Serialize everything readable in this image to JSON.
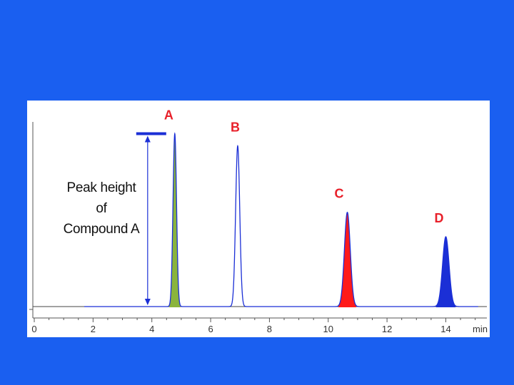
{
  "colors": {
    "background": "#1a5ff0",
    "panel": "#ffffff",
    "trace": "#1b2fd6",
    "peak_label": "#e8202a",
    "annotation_bar": "#1b2fd6"
  },
  "chart_data": {
    "type": "line",
    "title": "",
    "xlabel": "",
    "x_unit": "min",
    "ylabel": "",
    "xlim": [
      0,
      15.3
    ],
    "ylim": [
      0,
      1.0
    ],
    "xticks": [
      0,
      2,
      4,
      6,
      8,
      10,
      12,
      14
    ],
    "grid": false,
    "baseline_start": 1.7,
    "peaks": [
      {
        "label": "A",
        "x": 4.78,
        "height": 0.99,
        "width": 0.06,
        "fill": "#8ab43c"
      },
      {
        "label": "B",
        "x": 6.92,
        "height": 0.92,
        "width": 0.07,
        "fill": "none"
      },
      {
        "label": "C",
        "x": 10.65,
        "height": 0.54,
        "width": 0.1,
        "fill": "#ff1a1a"
      },
      {
        "label": "D",
        "x": 14.0,
        "height": 0.4,
        "width": 0.11,
        "fill": "#1b2fd6"
      }
    ],
    "annotation": {
      "lines": [
        "Peak height",
        "of",
        "Compound A"
      ],
      "peak": "A"
    }
  }
}
